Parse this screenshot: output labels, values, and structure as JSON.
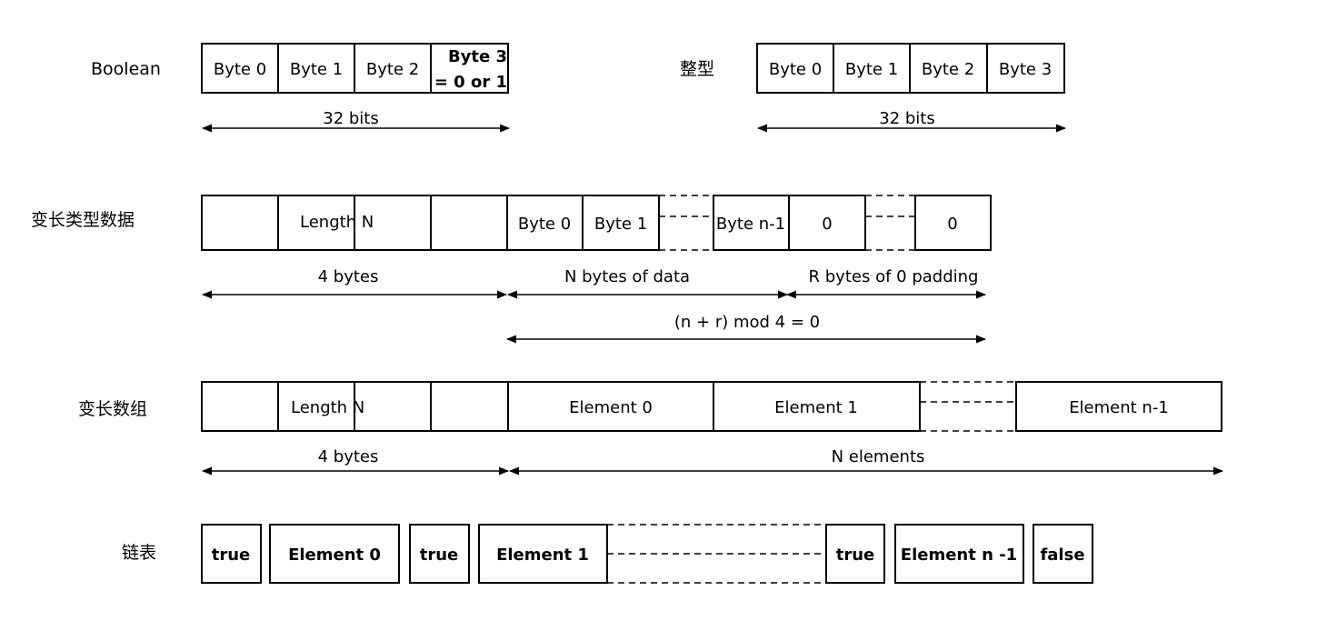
{
  "rows": {
    "boolean": {
      "label": "Boolean",
      "cells": [
        "Byte 0",
        "Byte 1",
        "Byte 2"
      ],
      "last_cell_line1": "Byte 3",
      "last_cell_line2": "= 0 or 1",
      "span": "32 bits"
    },
    "integer": {
      "label": "整型",
      "cells": [
        "Byte 0",
        "Byte 1",
        "Byte 2",
        "Byte 3"
      ],
      "span": "32 bits"
    },
    "variable_data": {
      "label": "变长类型数据",
      "length_text": "Length N",
      "data_cells": [
        "Byte 0",
        "Byte 1",
        "Byte n-1"
      ],
      "pad_cells": [
        "0",
        "0"
      ],
      "span_length": "4 bytes",
      "span_data": "N bytes of data",
      "span_padding": "R bytes of 0 padding",
      "span_mod": "(n + r) mod 4 = 0"
    },
    "variable_array": {
      "label": "变长数组",
      "length_text": "Length N",
      "elements": [
        "Element 0",
        "Element 1",
        "Element n-1"
      ],
      "span_length": "4 bytes",
      "span_elements": "N elements"
    },
    "linked_list": {
      "label": "链表",
      "nodes": [
        "true",
        "Element 0",
        "true",
        "Element 1",
        "true",
        "Element n -1",
        "false"
      ]
    }
  }
}
